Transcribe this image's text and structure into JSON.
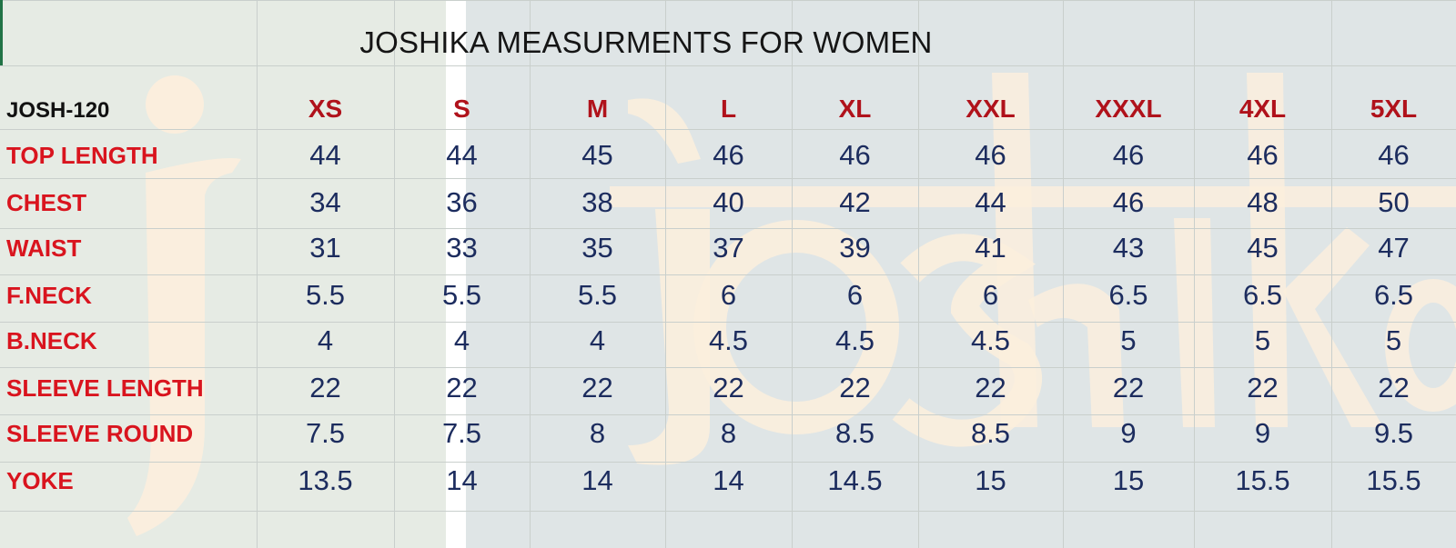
{
  "title": "JOSHIKA MEASURMENTS FOR WOMEN",
  "code": "JOSH-120",
  "watermark": "joshika",
  "sizes": [
    "XS",
    "S",
    "M",
    "L",
    "XL",
    "XXL",
    "XXXL",
    "4XL",
    "5XL"
  ],
  "rows": [
    {
      "label": "TOP LENGTH",
      "values": [
        "44",
        "44",
        "45",
        "46",
        "46",
        "46",
        "46",
        "46",
        "46"
      ]
    },
    {
      "label": "CHEST",
      "values": [
        "34",
        "36",
        "38",
        "40",
        "42",
        "44",
        "46",
        "48",
        "50"
      ]
    },
    {
      "label": "WAIST",
      "values": [
        "31",
        "33",
        "35",
        "37",
        "39",
        "41",
        "43",
        "45",
        "47"
      ]
    },
    {
      "label": "F.NECK",
      "values": [
        "5.5",
        "5.5",
        "5.5",
        "6",
        "6",
        "6",
        "6.5",
        "6.5",
        "6.5"
      ]
    },
    {
      "label": "B.NECK",
      "values": [
        "4",
        "4",
        "4",
        "4.5",
        "4.5",
        "4.5",
        "5",
        "5",
        "5"
      ]
    },
    {
      "label": "SLEEVE LENGTH",
      "values": [
        "22",
        "22",
        "22",
        "22",
        "22",
        "22",
        "22",
        "22",
        "22"
      ]
    },
    {
      "label": "SLEEVE ROUND",
      "values": [
        "7.5",
        "7.5",
        "8",
        "8",
        "8.5",
        "8.5",
        "9",
        "9",
        "9.5"
      ]
    },
    {
      "label": "YOKE",
      "values": [
        "13.5",
        "14",
        "14",
        "14",
        "14.5",
        "15",
        "15",
        "15.5",
        "15.5"
      ]
    }
  ],
  "colors": {
    "label_red": "#d9141e",
    "size_red": "#b0121b",
    "value_navy": "#1c2c5e",
    "watermark_cream": "#fbeedd",
    "excel_green": "#217346"
  }
}
